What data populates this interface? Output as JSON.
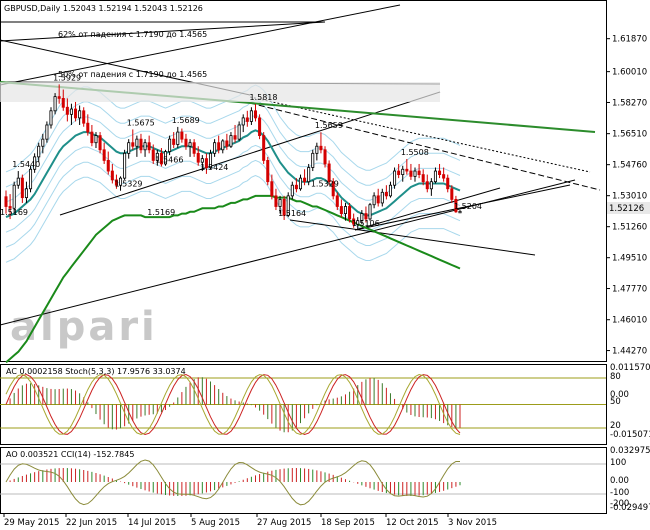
{
  "chart_data": {
    "type": "candlestick",
    "title": "GBPUSD,Daily  1.52043 1.52194 1.52043 1.52126",
    "symbol": "GBPUSD",
    "timeframe": "Daily",
    "ohlc": {
      "open": 1.52043,
      "high": 1.52194,
      "low": 1.52043,
      "close": 1.52126
    },
    "current_price_label": "1.52126",
    "price_axis_ticks": [
      "1.61870",
      "1.60010",
      "1.58270",
      "1.56510",
      "1.54760",
      "1.53010",
      "1.51260",
      "1.49510",
      "1.47770",
      "1.46010",
      "1.44270"
    ],
    "price_range": [
      1.4385,
      1.6315
    ],
    "time_axis_ticks": [
      "29 May 2015",
      "22 Jun 2015",
      "14 Jul 2015",
      "5 Aug 2015",
      "27 Aug 2015",
      "18 Sep 2015",
      "12 Oct 2015",
      "3 Nov 2015"
    ],
    "annotations": [
      {
        "text": "62% от падения с 1.7190 до 1.4565",
        "price": 1.614
      },
      {
        "text": "50% от падения с 1.7190 до 1.4565",
        "price": 1.5935
      }
    ],
    "price_labels": [
      {
        "text": "1.5929",
        "bar": 13,
        "price": 1.5929
      },
      {
        "text": "1.5440",
        "bar": 3,
        "price": 1.544
      },
      {
        "text": "1.5169",
        "bar": 0,
        "price": 1.5169
      },
      {
        "text": "1.5675",
        "bar": 31,
        "price": 1.5675
      },
      {
        "text": "1.5689",
        "bar": 42,
        "price": 1.5689
      },
      {
        "text": "1.5466",
        "bar": 38,
        "price": 1.5466
      },
      {
        "text": "1.5329",
        "bar": 28,
        "price": 1.5329
      },
      {
        "text": "1.5424",
        "bar": 49,
        "price": 1.5424
      },
      {
        "text": "1.5169",
        "bar": 36,
        "price": 1.5169
      },
      {
        "text": "1.5818",
        "bar": 61,
        "price": 1.5818
      },
      {
        "text": "1.5659",
        "bar": 77,
        "price": 1.5659
      },
      {
        "text": "1.5329",
        "bar": 76,
        "price": 1.5329
      },
      {
        "text": "1.5164",
        "bar": 68,
        "price": 1.5164
      },
      {
        "text": "1.5106",
        "bar": 86,
        "price": 1.5106
      },
      {
        "text": "1.5508",
        "bar": 98,
        "price": 1.5508
      },
      {
        "text": "1.5204",
        "bar": 111,
        "price": 1.5204
      }
    ],
    "candles": [
      {
        "o": 1.5295,
        "h": 1.533,
        "l": 1.52,
        "c": 1.524
      },
      {
        "o": 1.524,
        "h": 1.531,
        "l": 1.5169,
        "c": 1.523
      },
      {
        "o": 1.523,
        "h": 1.538,
        "l": 1.52,
        "c": 1.536
      },
      {
        "o": 1.536,
        "h": 1.544,
        "l": 1.534,
        "c": 1.54
      },
      {
        "o": 1.54,
        "h": 1.542,
        "l": 1.526,
        "c": 1.529
      },
      {
        "o": 1.529,
        "h": 1.538,
        "l": 1.526,
        "c": 1.534
      },
      {
        "o": 1.534,
        "h": 1.547,
        "l": 1.532,
        "c": 1.545
      },
      {
        "o": 1.545,
        "h": 1.554,
        "l": 1.543,
        "c": 1.552
      },
      {
        "o": 1.552,
        "h": 1.56,
        "l": 1.549,
        "c": 1.558
      },
      {
        "o": 1.558,
        "h": 1.565,
        "l": 1.554,
        "c": 1.562
      },
      {
        "o": 1.562,
        "h": 1.572,
        "l": 1.56,
        "c": 1.57
      },
      {
        "o": 1.57,
        "h": 1.58,
        "l": 1.568,
        "c": 1.578
      },
      {
        "o": 1.578,
        "h": 1.588,
        "l": 1.576,
        "c": 1.586
      },
      {
        "o": 1.586,
        "h": 1.5929,
        "l": 1.582,
        "c": 1.585
      },
      {
        "o": 1.585,
        "h": 1.59,
        "l": 1.578,
        "c": 1.58
      },
      {
        "o": 1.58,
        "h": 1.585,
        "l": 1.572,
        "c": 1.576
      },
      {
        "o": 1.576,
        "h": 1.582,
        "l": 1.57,
        "c": 1.579
      },
      {
        "o": 1.579,
        "h": 1.583,
        "l": 1.572,
        "c": 1.574
      },
      {
        "o": 1.574,
        "h": 1.581,
        "l": 1.57,
        "c": 1.578
      },
      {
        "o": 1.578,
        "h": 1.58,
        "l": 1.569,
        "c": 1.571
      },
      {
        "o": 1.571,
        "h": 1.576,
        "l": 1.564,
        "c": 1.566
      },
      {
        "o": 1.566,
        "h": 1.57,
        "l": 1.558,
        "c": 1.56
      },
      {
        "o": 1.56,
        "h": 1.566,
        "l": 1.557,
        "c": 1.564
      },
      {
        "o": 1.564,
        "h": 1.566,
        "l": 1.554,
        "c": 1.556
      },
      {
        "o": 1.556,
        "h": 1.56,
        "l": 1.548,
        "c": 1.55
      },
      {
        "o": 1.55,
        "h": 1.555,
        "l": 1.542,
        "c": 1.544
      },
      {
        "o": 1.544,
        "h": 1.548,
        "l": 1.537,
        "c": 1.539
      },
      {
        "o": 1.539,
        "h": 1.542,
        "l": 1.534,
        "c": 1.536
      },
      {
        "o": 1.536,
        "h": 1.541,
        "l": 1.5329,
        "c": 1.54
      },
      {
        "o": 1.54,
        "h": 1.556,
        "l": 1.539,
        "c": 1.554
      },
      {
        "o": 1.554,
        "h": 1.562,
        "l": 1.551,
        "c": 1.56
      },
      {
        "o": 1.56,
        "h": 1.5675,
        "l": 1.556,
        "c": 1.558
      },
      {
        "o": 1.558,
        "h": 1.564,
        "l": 1.552,
        "c": 1.562
      },
      {
        "o": 1.562,
        "h": 1.565,
        "l": 1.554,
        "c": 1.556
      },
      {
        "o": 1.556,
        "h": 1.562,
        "l": 1.552,
        "c": 1.56
      },
      {
        "o": 1.56,
        "h": 1.564,
        "l": 1.554,
        "c": 1.556
      },
      {
        "o": 1.556,
        "h": 1.559,
        "l": 1.548,
        "c": 1.55
      },
      {
        "o": 1.55,
        "h": 1.556,
        "l": 1.547,
        "c": 1.554
      },
      {
        "o": 1.554,
        "h": 1.557,
        "l": 1.5466,
        "c": 1.548
      },
      {
        "o": 1.548,
        "h": 1.556,
        "l": 1.547,
        "c": 1.555
      },
      {
        "o": 1.555,
        "h": 1.564,
        "l": 1.553,
        "c": 1.562
      },
      {
        "o": 1.562,
        "h": 1.566,
        "l": 1.557,
        "c": 1.559
      },
      {
        "o": 1.559,
        "h": 1.5689,
        "l": 1.557,
        "c": 1.566
      },
      {
        "o": 1.566,
        "h": 1.568,
        "l": 1.56,
        "c": 1.562
      },
      {
        "o": 1.562,
        "h": 1.565,
        "l": 1.556,
        "c": 1.558
      },
      {
        "o": 1.558,
        "h": 1.562,
        "l": 1.552,
        "c": 1.56
      },
      {
        "o": 1.56,
        "h": 1.562,
        "l": 1.552,
        "c": 1.554
      },
      {
        "o": 1.554,
        "h": 1.558,
        "l": 1.547,
        "c": 1.549
      },
      {
        "o": 1.549,
        "h": 1.553,
        "l": 1.544,
        "c": 1.551
      },
      {
        "o": 1.551,
        "h": 1.554,
        "l": 1.5424,
        "c": 1.546
      },
      {
        "o": 1.546,
        "h": 1.556,
        "l": 1.545,
        "c": 1.554
      },
      {
        "o": 1.554,
        "h": 1.562,
        "l": 1.552,
        "c": 1.56
      },
      {
        "o": 1.56,
        "h": 1.564,
        "l": 1.554,
        "c": 1.556
      },
      {
        "o": 1.556,
        "h": 1.562,
        "l": 1.554,
        "c": 1.561
      },
      {
        "o": 1.561,
        "h": 1.565,
        "l": 1.556,
        "c": 1.558
      },
      {
        "o": 1.558,
        "h": 1.566,
        "l": 1.557,
        "c": 1.564
      },
      {
        "o": 1.564,
        "h": 1.57,
        "l": 1.56,
        "c": 1.562
      },
      {
        "o": 1.562,
        "h": 1.572,
        "l": 1.561,
        "c": 1.57
      },
      {
        "o": 1.57,
        "h": 1.576,
        "l": 1.566,
        "c": 1.574
      },
      {
        "o": 1.574,
        "h": 1.578,
        "l": 1.569,
        "c": 1.572
      },
      {
        "o": 1.572,
        "h": 1.58,
        "l": 1.57,
        "c": 1.578
      },
      {
        "o": 1.578,
        "h": 1.5818,
        "l": 1.572,
        "c": 1.574
      },
      {
        "o": 1.574,
        "h": 1.576,
        "l": 1.562,
        "c": 1.564
      },
      {
        "o": 1.564,
        "h": 1.566,
        "l": 1.548,
        "c": 1.55
      },
      {
        "o": 1.55,
        "h": 1.552,
        "l": 1.536,
        "c": 1.538
      },
      {
        "o": 1.538,
        "h": 1.542,
        "l": 1.528,
        "c": 1.53
      },
      {
        "o": 1.53,
        "h": 1.534,
        "l": 1.522,
        "c": 1.524
      },
      {
        "o": 1.524,
        "h": 1.53,
        "l": 1.52,
        "c": 1.528
      },
      {
        "o": 1.528,
        "h": 1.53,
        "l": 1.5164,
        "c": 1.519
      },
      {
        "o": 1.519,
        "h": 1.532,
        "l": 1.518,
        "c": 1.53
      },
      {
        "o": 1.53,
        "h": 1.538,
        "l": 1.528,
        "c": 1.536
      },
      {
        "o": 1.536,
        "h": 1.54,
        "l": 1.532,
        "c": 1.534
      },
      {
        "o": 1.534,
        "h": 1.542,
        "l": 1.5329,
        "c": 1.54
      },
      {
        "o": 1.54,
        "h": 1.545,
        "l": 1.536,
        "c": 1.538
      },
      {
        "o": 1.538,
        "h": 1.548,
        "l": 1.536,
        "c": 1.546
      },
      {
        "o": 1.546,
        "h": 1.556,
        "l": 1.544,
        "c": 1.554
      },
      {
        "o": 1.554,
        "h": 1.56,
        "l": 1.55,
        "c": 1.558
      },
      {
        "o": 1.558,
        "h": 1.5659,
        "l": 1.554,
        "c": 1.556
      },
      {
        "o": 1.556,
        "h": 1.558,
        "l": 1.546,
        "c": 1.548
      },
      {
        "o": 1.548,
        "h": 1.55,
        "l": 1.536,
        "c": 1.538
      },
      {
        "o": 1.538,
        "h": 1.54,
        "l": 1.528,
        "c": 1.53
      },
      {
        "o": 1.53,
        "h": 1.532,
        "l": 1.522,
        "c": 1.524
      },
      {
        "o": 1.524,
        "h": 1.528,
        "l": 1.518,
        "c": 1.52
      },
      {
        "o": 1.52,
        "h": 1.526,
        "l": 1.516,
        "c": 1.524
      },
      {
        "o": 1.524,
        "h": 1.526,
        "l": 1.515,
        "c": 1.517
      },
      {
        "o": 1.517,
        "h": 1.52,
        "l": 1.512,
        "c": 1.514
      },
      {
        "o": 1.514,
        "h": 1.518,
        "l": 1.5106,
        "c": 1.516
      },
      {
        "o": 1.516,
        "h": 1.522,
        "l": 1.514,
        "c": 1.52
      },
      {
        "o": 1.52,
        "h": 1.524,
        "l": 1.515,
        "c": 1.517
      },
      {
        "o": 1.517,
        "h": 1.526,
        "l": 1.516,
        "c": 1.525
      },
      {
        "o": 1.525,
        "h": 1.532,
        "l": 1.523,
        "c": 1.53
      },
      {
        "o": 1.53,
        "h": 1.534,
        "l": 1.524,
        "c": 1.526
      },
      {
        "o": 1.526,
        "h": 1.534,
        "l": 1.524,
        "c": 1.532
      },
      {
        "o": 1.532,
        "h": 1.536,
        "l": 1.528,
        "c": 1.53
      },
      {
        "o": 1.53,
        "h": 1.538,
        "l": 1.529,
        "c": 1.536
      },
      {
        "o": 1.536,
        "h": 1.546,
        "l": 1.534,
        "c": 1.544
      },
      {
        "o": 1.544,
        "h": 1.548,
        "l": 1.54,
        "c": 1.542
      },
      {
        "o": 1.542,
        "h": 1.547,
        "l": 1.538,
        "c": 1.545
      },
      {
        "o": 1.545,
        "h": 1.5508,
        "l": 1.542,
        "c": 1.544
      },
      {
        "o": 1.544,
        "h": 1.548,
        "l": 1.539,
        "c": 1.541
      },
      {
        "o": 1.541,
        "h": 1.546,
        "l": 1.538,
        "c": 1.544
      },
      {
        "o": 1.544,
        "h": 1.548,
        "l": 1.54,
        "c": 1.542
      },
      {
        "o": 1.542,
        "h": 1.545,
        "l": 1.536,
        "c": 1.538
      },
      {
        "o": 1.538,
        "h": 1.542,
        "l": 1.532,
        "c": 1.534
      },
      {
        "o": 1.534,
        "h": 1.54,
        "l": 1.53,
        "c": 1.538
      },
      {
        "o": 1.538,
        "h": 1.546,
        "l": 1.537,
        "c": 1.544
      },
      {
        "o": 1.544,
        "h": 1.548,
        "l": 1.54,
        "c": 1.542
      },
      {
        "o": 1.542,
        "h": 1.546,
        "l": 1.538,
        "c": 1.54
      },
      {
        "o": 1.54,
        "h": 1.542,
        "l": 1.532,
        "c": 1.534
      },
      {
        "o": 1.534,
        "h": 1.536,
        "l": 1.526,
        "c": 1.528
      },
      {
        "o": 1.528,
        "h": 1.53,
        "l": 1.5204,
        "c": 1.521
      },
      {
        "o": 1.52043,
        "h": 1.52194,
        "l": 1.52043,
        "c": 1.52126
      }
    ],
    "ma_green": [
      1.436,
      1.438,
      1.44,
      1.442,
      1.445,
      1.448,
      1.452,
      1.456,
      1.46,
      1.464,
      1.468,
      1.472,
      1.476,
      1.48,
      1.484,
      1.487,
      1.49,
      1.493,
      1.496,
      1.499,
      1.502,
      1.505,
      1.508,
      1.51,
      1.512,
      1.514,
      1.516,
      1.517,
      1.518,
      1.519,
      1.519,
      1.519,
      1.519,
      1.519,
      1.518,
      1.518,
      1.518,
      1.518,
      1.518,
      1.518,
      1.518,
      1.519,
      1.519,
      1.52,
      1.52,
      1.521,
      1.521,
      1.522,
      1.523,
      1.523,
      1.523,
      1.523,
      1.524,
      1.524,
      1.525,
      1.526,
      1.526,
      1.527,
      1.528,
      1.528,
      1.529,
      1.53,
      1.53,
      1.53,
      1.53,
      1.53,
      1.529,
      1.529,
      1.529,
      1.529,
      1.528,
      1.527,
      1.527,
      1.526,
      1.525,
      1.524,
      1.524,
      1.523,
      1.522,
      1.521,
      1.52,
      1.519,
      1.518,
      1.517,
      1.516,
      1.515,
      1.514,
      1.513,
      1.512,
      1.511,
      1.51,
      1.509,
      1.508,
      1.507,
      1.506,
      1.505,
      1.504,
      1.503,
      1.502,
      1.501,
      1.5,
      1.499,
      1.498,
      1.497,
      1.496,
      1.495,
      1.494,
      1.493,
      1.492,
      1.491,
      1.49,
      1.489
    ],
    "ma_teal": [
      1.518,
      1.519,
      1.52,
      1.522,
      1.524,
      1.526,
      1.528,
      1.531,
      1.535,
      1.539,
      1.543,
      1.547,
      1.551,
      1.555,
      1.558,
      1.56,
      1.562,
      1.564,
      1.565,
      1.566,
      1.566,
      1.565,
      1.564,
      1.563,
      1.561,
      1.559,
      1.557,
      1.555,
      1.554,
      1.554,
      1.555,
      1.556,
      1.557,
      1.558,
      1.558,
      1.558,
      1.557,
      1.556,
      1.555,
      1.554,
      1.555,
      1.556,
      1.557,
      1.558,
      1.558,
      1.558,
      1.557,
      1.556,
      1.555,
      1.554,
      1.554,
      1.555,
      1.556,
      1.557,
      1.558,
      1.559,
      1.56,
      1.561,
      1.563,
      1.564,
      1.566,
      1.567,
      1.566,
      1.564,
      1.561,
      1.557,
      1.553,
      1.549,
      1.546,
      1.543,
      1.541,
      1.539,
      1.538,
      1.538,
      1.538,
      1.539,
      1.54,
      1.54,
      1.539,
      1.537,
      1.535,
      1.532,
      1.529,
      1.527,
      1.525,
      1.523,
      1.521,
      1.52,
      1.519,
      1.519,
      1.52,
      1.521,
      1.522,
      1.523,
      1.525,
      1.527,
      1.529,
      1.531,
      1.533,
      1.535,
      1.536,
      1.537,
      1.537,
      1.537,
      1.537,
      1.537,
      1.537,
      1.537,
      1.536,
      1.535,
      1.534,
      1.533
    ],
    "ac_panel": {
      "label": "AC 0.0002158  Stoch(5,3,3) 17.9576 33.0374",
      "ticks": [
        "0.011570",
        "80",
        "0.00",
        "50",
        "20",
        "-0.015071"
      ]
    },
    "ao_panel": {
      "label": "AO 0.003521  CCI(14) -152.7845",
      "ticks": [
        "0.032975",
        "100",
        "0.00",
        "-100",
        "-200",
        "-0.029497"
      ]
    }
  },
  "watermark": "alpari",
  "colors": {
    "bull": "#000000",
    "bear": "#d40000",
    "ma_long": "#1a8a1a",
    "ma_mid": "#1f8f8a",
    "band": "#a8d8ec",
    "trend": "#000000",
    "green_line": "#2c8c2c",
    "osc_red": "#cc2222",
    "osc_olive": "#9c9c1a",
    "cci": "#8b8b3a"
  }
}
